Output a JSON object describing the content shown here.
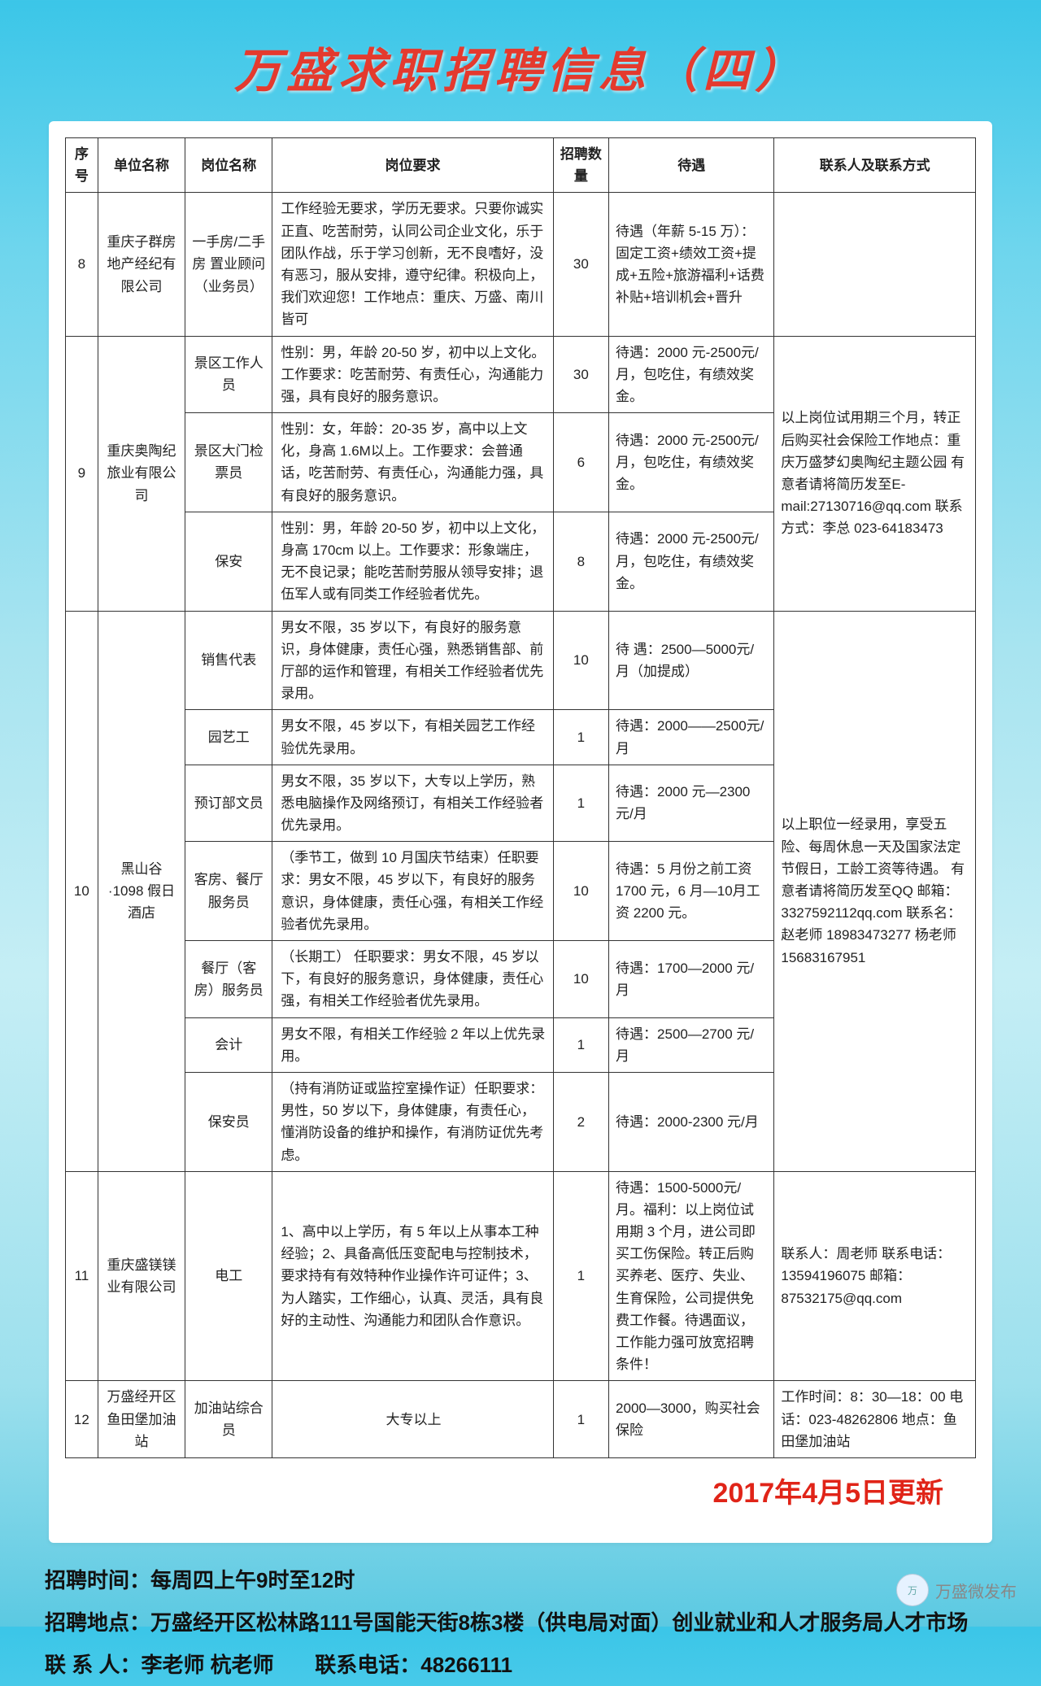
{
  "title": "万盛求职招聘信息（四）",
  "headers": [
    "序号",
    "单位名称",
    "岗位名称",
    "岗位要求",
    "招聘数量",
    "待遇",
    "联系人及联系方式"
  ],
  "update": "2017年4月5日更新",
  "footer": {
    "time": "招聘时间：每周四上午9时至12时",
    "addr": "招聘地点：万盛经开区松林路111号国能天街8栋3楼（供电局对面）创业就业和人才服务局人才市场",
    "person": "联 系 人：李老师  杭老师",
    "tel": "联系电话：48266111"
  },
  "watermark": "万盛微发布",
  "r8": {
    "seq": "8",
    "unit": "重庆子群房地产经纪有限公司",
    "post": "一手房/二手房 置业顾问（业务员）",
    "req": "工作经验无要求，学历无要求。只要你诚实正直、吃苦耐劳，认同公司企业文化，乐于团队作战，乐于学习创新，无不良嗜好，没有恶习，服从安排，遵守纪律。积极向上，我们欢迎您！工作地点：重庆、万盛、南川皆可",
    "num": "30",
    "pay": "待遇（年薪 5-15 万）：固定工资+绩效工资+提成+五险+旅游福利+话费补贴+培训机会+晋升",
    "contact": ""
  },
  "r9": {
    "seq": "9",
    "unit": "重庆奥陶纪旅业有限公司",
    "contact": "以上岗位试用期三个月，转正后购买社会保险工作地点：重庆万盛梦幻奥陶纪主题公园 有意者请将简历发至E-mail:27130716@qq.com\n联系方式：李总\n023-64183473",
    "a": {
      "post": "景区工作人员",
      "req": "性别：男，年龄 20-50 岁，初中以上文化。工作要求：吃苦耐劳、有责任心，沟通能力强，具有良好的服务意识。",
      "num": "30",
      "pay": "待遇：2000 元-2500元/月，包吃住，有绩效奖金。"
    },
    "b": {
      "post": "景区大门检票员",
      "req": "性别：女，年龄：20-35 岁，高中以上文化，身高 1.6M以上。工作要求：会普通话，吃苦耐劳、有责任心，沟通能力强，具有良好的服务意识。",
      "num": "6",
      "pay": "待遇：2000 元-2500元/月，包吃住，有绩效奖金。"
    },
    "c": {
      "post": "保安",
      "req": "性别：男，年龄 20-50 岁，初中以上文化，身高 170cm 以上。工作要求：形象端庄，无不良记录；能吃苦耐劳服从领导安排；退伍军人或有同类工作经验者优先。",
      "num": "8",
      "pay": "待遇：2000 元-2500元/月，包吃住，有绩效奖金。"
    }
  },
  "r10": {
    "seq": "10",
    "unit": "黑山谷·1098 假日酒店",
    "contact": "以上职位一经录用，享受五险、每周休息一天及国家法定节假日，工龄工资等待遇。\n有意者请将简历发至QQ 邮箱：3327592112qq.com\n联系名：赵老师\n18983473277\n杨老师\n15683167951",
    "a": {
      "post": "销售代表",
      "req": "男女不限，35 岁以下，有良好的服务意识，身体健康，责任心强，熟悉销售部、前厅部的运作和管理，有相关工作经验者优先录用。",
      "num": "10",
      "pay": "待 遇：2500—5000元/月（加提成）"
    },
    "b": {
      "post": "园艺工",
      "req": "男女不限，45 岁以下，有相关园艺工作经验优先录用。",
      "num": "1",
      "pay": "待遇：2000——2500元/月"
    },
    "c": {
      "post": "预订部文员",
      "req": "男女不限，35 岁以下，大专以上学历，熟悉电脑操作及网络预订，有相关工作经验者优先录用。",
      "num": "1",
      "pay": "待遇：2000 元—2300元/月"
    },
    "d": {
      "post": "客房、餐厅服务员",
      "req": "（季节工，做到 10 月国庆节结束）任职要求：男女不限，45 岁以下，有良好的服务意识，身体健康，责任心强，有相关工作经验者优先录用。",
      "num": "10",
      "pay": "待遇：5 月份之前工资 1700 元，6 月—10月工资 2200 元。"
    },
    "e": {
      "post": "餐厅（客房）服务员",
      "req": "（长期工）\n任职要求：男女不限，45 岁以下，有良好的服务意识，身体健康，责任心强，有相关工作经验者优先录用。",
      "num": "10",
      "pay": "待遇：1700—2000 元/月"
    },
    "f": {
      "post": "会计",
      "req": "男女不限，有相关工作经验 2 年以上优先录用。",
      "num": "1",
      "pay": "待遇：2500—2700 元/月"
    },
    "g": {
      "post": "保安员",
      "req": "（持有消防证或监控室操作证）任职要求：男性，50 岁以下，身体健康，有责任心，懂消防设备的维护和操作，有消防证优先考虑。",
      "num": "2",
      "pay": "待遇：2000-2300 元/月"
    }
  },
  "r11": {
    "seq": "11",
    "unit": "重庆盛镁镁业有限公司",
    "post": "电工",
    "req": "1、高中以上学历，有 5 年以上从事本工种经验；2、具备高低压变配电与控制技术，要求持有有效特种作业操作许可证件；3、为人踏实，工作细心，认真、灵活，具有良好的主动性、沟通能力和团队合作意识。",
    "num": "1",
    "pay": "待遇：1500-5000元/月。福利：以上岗位试用期 3 个月，进公司即买工伤保险。转正后购买养老、医疗、失业、生育保险，公司提供免费工作餐。待遇面议，工作能力强可放宽招聘条件！",
    "contact": "联系人：周老师\n联系电话：\n13594196075\n邮箱：\n87532175@qq.com"
  },
  "r12": {
    "seq": "12",
    "unit": "万盛经开区鱼田堡加油站",
    "post": "加油站综合员",
    "req": "大专以上",
    "num": "1",
    "pay": "2000—3000，购买社会保险",
    "contact": "工作时间：8：30—18：00 电话：023-48262806\n地点：鱼田堡加油站"
  }
}
